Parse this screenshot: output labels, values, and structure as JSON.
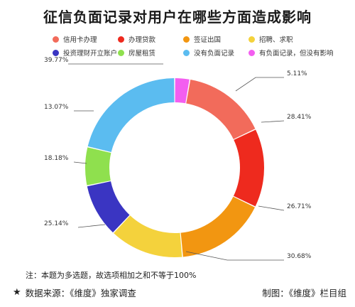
{
  "title": "征信负面记录对用户在哪些方面造成影响",
  "chart_data": {
    "type": "pie",
    "donut": true,
    "labels": [
      "没有负面记录",
      "有负面记录，但没有影响",
      "信用卡办理",
      "办理贷款",
      "签证出国",
      "招聘、求职",
      "投资理财开立账户",
      "房屋租赁"
    ],
    "values": [
      39.77,
      5.11,
      28.41,
      26.71,
      30.68,
      25.14,
      18.18,
      13.07
    ],
    "value_labels": [
      "39.77%",
      "5.11%",
      "28.41%",
      "26.71%",
      "30.68%",
      "25.14%",
      "18.18%",
      "13.07%"
    ],
    "colors": [
      "#5bbcf0",
      "#f35ef0",
      "#f26b5b",
      "#ee2a1e",
      "#f29611",
      "#f4d23c",
      "#3a35c2",
      "#8fe04e"
    ],
    "legend_position": "top"
  },
  "legend": [
    {
      "label": "信用卡办理",
      "color": "#f26b5b"
    },
    {
      "label": "办理贷款",
      "color": "#ee2a1e"
    },
    {
      "label": "签证出国",
      "color": "#f29611"
    },
    {
      "label": "招聘、求职",
      "color": "#f4d23c"
    },
    {
      "label": "投资理财开立账户",
      "color": "#3a35c2"
    },
    {
      "label": "房屋租赁",
      "color": "#8fe04e"
    },
    {
      "label": "没有负面记录",
      "color": "#5bbcf0"
    },
    {
      "label": "有负面记录，但没有影响",
      "color": "#f35ef0"
    }
  ],
  "note": "注：本题为多选题，故选项相加之和不等于100%",
  "footer": {
    "star": "★",
    "source": "数据来源：《维度》独家调查",
    "credit": "制图：《维度》栏目组"
  }
}
